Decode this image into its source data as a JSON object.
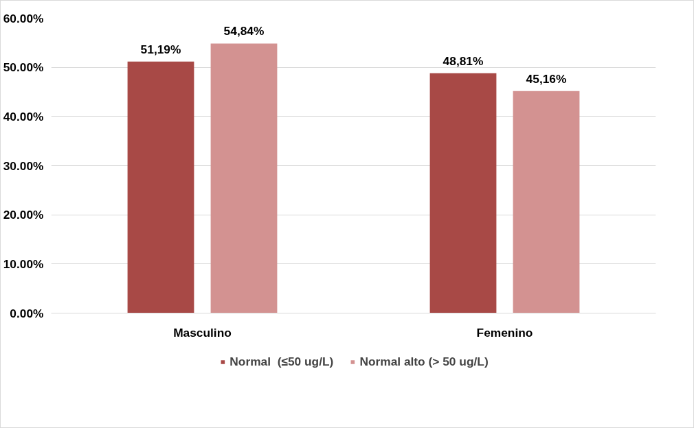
{
  "chart_data": {
    "type": "bar",
    "categories": [
      "Masculino",
      "Femenino"
    ],
    "series": [
      {
        "name": "Normal  (≤50 ug/L)",
        "color": "#a84946",
        "values": [
          51.19,
          48.81
        ],
        "value_labels": [
          "51,19%",
          "48,81%"
        ]
      },
      {
        "name": "Normal alto (> 50 ug/L)",
        "color": "#d39291",
        "values": [
          54.84,
          45.16
        ],
        "value_labels": [
          "54,84%",
          "45,16%"
        ]
      }
    ],
    "ylim": [
      0,
      60
    ],
    "yticks": [
      {
        "value": 0,
        "label": "0.00%"
      },
      {
        "value": 10,
        "label": "10.00%"
      },
      {
        "value": 20,
        "label": "20.00%"
      },
      {
        "value": 30,
        "label": "30.00%"
      },
      {
        "value": 40,
        "label": "40.00%"
      },
      {
        "value": 50,
        "label": "50.00%"
      },
      {
        "value": 60,
        "label": "60.00%"
      }
    ],
    "grid": "y",
    "legend": "bottom"
  }
}
